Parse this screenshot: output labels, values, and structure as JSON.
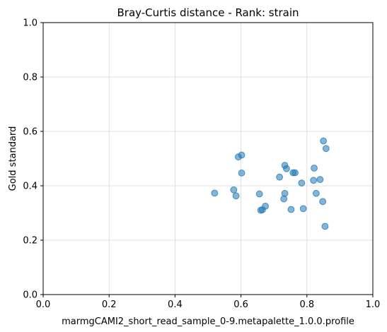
{
  "chart_data": {
    "type": "scatter",
    "title": "Bray-Curtis distance - Rank: strain",
    "xlabel": "marmgCAMI2_short_read_sample_0-9.metapalette_1.0.0.profile",
    "ylabel": "Gold standard",
    "xlim": [
      0.0,
      1.0
    ],
    "ylim": [
      0.0,
      1.0
    ],
    "xticks": [
      "0.0",
      "0.2",
      "0.4",
      "0.6",
      "0.8",
      "1.0"
    ],
    "yticks": [
      "0.0",
      "0.2",
      "0.4",
      "0.6",
      "0.8",
      "1.0"
    ],
    "grid": true,
    "color": "#1f77b4",
    "points": [
      {
        "x": 0.52,
        "y": 0.373
      },
      {
        "x": 0.578,
        "y": 0.385
      },
      {
        "x": 0.585,
        "y": 0.363
      },
      {
        "x": 0.592,
        "y": 0.506
      },
      {
        "x": 0.602,
        "y": 0.513
      },
      {
        "x": 0.602,
        "y": 0.447
      },
      {
        "x": 0.656,
        "y": 0.37
      },
      {
        "x": 0.66,
        "y": 0.31
      },
      {
        "x": 0.665,
        "y": 0.312
      },
      {
        "x": 0.674,
        "y": 0.325
      },
      {
        "x": 0.717,
        "y": 0.432
      },
      {
        "x": 0.73,
        "y": 0.352
      },
      {
        "x": 0.733,
        "y": 0.372
      },
      {
        "x": 0.733,
        "y": 0.475
      },
      {
        "x": 0.738,
        "y": 0.463
      },
      {
        "x": 0.752,
        "y": 0.313
      },
      {
        "x": 0.758,
        "y": 0.448
      },
      {
        "x": 0.764,
        "y": 0.448
      },
      {
        "x": 0.784,
        "y": 0.41
      },
      {
        "x": 0.789,
        "y": 0.316
      },
      {
        "x": 0.82,
        "y": 0.42
      },
      {
        "x": 0.822,
        "y": 0.465
      },
      {
        "x": 0.828,
        "y": 0.372
      },
      {
        "x": 0.84,
        "y": 0.423
      },
      {
        "x": 0.848,
        "y": 0.342
      },
      {
        "x": 0.85,
        "y": 0.565
      },
      {
        "x": 0.855,
        "y": 0.251
      },
      {
        "x": 0.858,
        "y": 0.537
      }
    ]
  }
}
